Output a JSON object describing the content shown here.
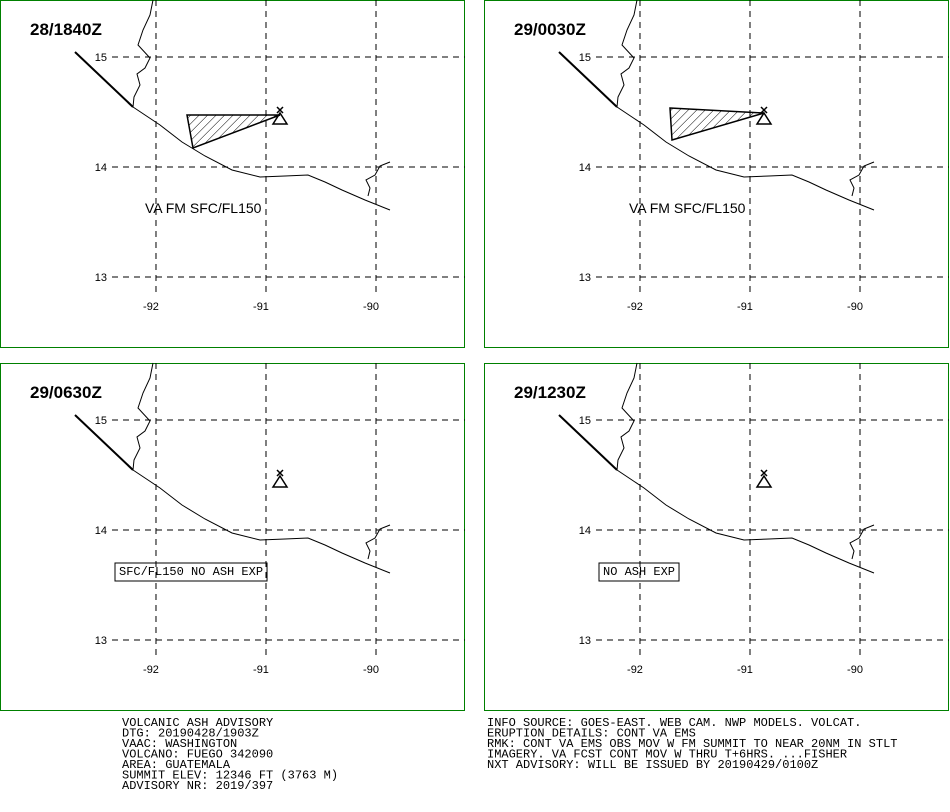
{
  "panels": [
    {
      "time": "28/1840Z",
      "label": "VA FM SFC/FL150",
      "boxed": false,
      "ash": true
    },
    {
      "time": "29/0030Z",
      "label": "VA FM SFC/FL150",
      "boxed": false,
      "ash": true
    },
    {
      "time": "29/0630Z",
      "label": "SFC/FL150 NO ASH EXP",
      "boxed": true,
      "ash": false
    },
    {
      "time": "29/1230Z",
      "label": "NO ASH EXP",
      "boxed": true,
      "ash": false
    }
  ],
  "lat_ticks": [
    15,
    14,
    13
  ],
  "lon_ticks": [
    -92,
    -91,
    -90
  ],
  "lonlim": [
    -93.418,
    -89.191
  ],
  "latlim": [
    12.355,
    15.518
  ],
  "advisory_left": [
    "VOLCANIC ASH ADVISORY",
    "DTG: 20190428/1903Z",
    "VAAC: WASHINGTON",
    "VOLCANO: FUEGO 342090",
    "AREA: GUATEMALA",
    "SUMMIT ELEV: 12346 FT (3763 M)",
    "ADVISORY NR: 2019/397"
  ],
  "advisory_right": [
    "INFO SOURCE: GOES-EAST. WEB CAM. NWP MODELS. VOLCAT.",
    "ERUPTION DETAILS: CONT VA EMS",
    "RMK: CONT VA EMS OBS MOV W FM SUMMIT TO NEAR 20NM IN STLT",
    "IMAGERY. VA FCST CONT MOV W THRU T+6HRS. ...FISHER",
    "NXT ADVISORY: WILL BE ISSUED BY 20190429/0100Z"
  ]
}
